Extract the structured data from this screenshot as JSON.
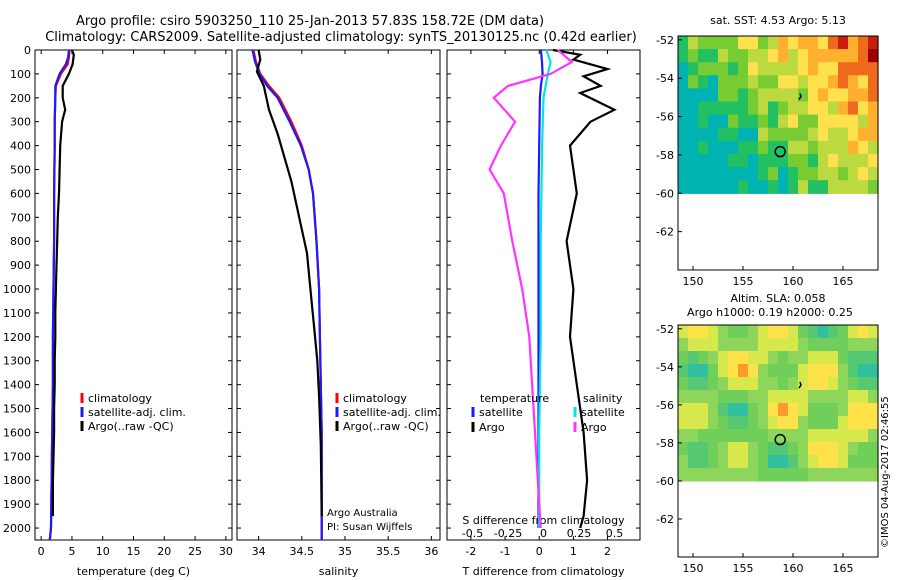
{
  "figure": {
    "title_line1": "Argo profile: csiro 5903250_110 25-Jan-2013 57.83S 158.72E (DM data)",
    "title_line2": "Climatology: CARS2009. Satellite-adjusted climatology: synTS_20130125.nc (0.42d earlier)",
    "credit": "©IMOS 04-Aug-2017 02:46:55",
    "note_line1": "Argo Australia",
    "note_line2": "PI: Susan Wijffels"
  },
  "colors": {
    "climatology": "#ff0000",
    "satellite": "#1a1aff",
    "argo": "#000000",
    "satellite_s": "#00e5e5",
    "argo_s": "#ff33ff"
  },
  "chart_data": [
    {
      "id": "temperature",
      "type": "line",
      "xlabel": "temperature (deg C)",
      "ylabel": "",
      "xlim": [
        -1,
        31
      ],
      "xticks": [
        0,
        5,
        10,
        15,
        20,
        25,
        30
      ],
      "ylim": [
        0,
        2050
      ],
      "yticks": [
        0,
        100,
        200,
        300,
        400,
        500,
        600,
        700,
        800,
        900,
        1000,
        1100,
        1200,
        1300,
        1400,
        1500,
        1600,
        1700,
        1800,
        1900,
        2000
      ],
      "legend": [
        "climatology",
        "satellite-adj. clim.",
        "Argo(..raw -QC)"
      ],
      "series": [
        {
          "name": "climatology",
          "x": [
            4.6,
            4.5,
            4.3,
            3.2,
            2.4,
            2.3,
            2.2,
            2.2,
            2.1,
            2.1,
            2.0,
            1.9,
            1.9,
            1.8,
            1.7,
            1.6,
            1.4
          ],
          "y": [
            0,
            30,
            60,
            100,
            150,
            200,
            300,
            400,
            600,
            800,
            1000,
            1200,
            1400,
            1600,
            1800,
            2000,
            2050
          ]
        },
        {
          "name": "satellite-adj. clim.",
          "x": [
            4.5,
            4.4,
            4.0,
            3.0,
            2.3,
            2.3,
            2.2,
            2.2,
            2.1,
            2.1,
            2.0,
            1.9,
            1.9,
            1.8,
            1.7,
            1.6,
            1.4
          ],
          "y": [
            0,
            30,
            60,
            100,
            150,
            200,
            300,
            400,
            600,
            800,
            1000,
            1200,
            1400,
            1600,
            1800,
            2000,
            2050
          ]
        },
        {
          "name": "Argo(..raw -QC)",
          "x": [
            5.0,
            5.3,
            5.1,
            4.5,
            3.5,
            3.5,
            3.9,
            3.6,
            3.4,
            3.1,
            3.0,
            2.9,
            2.7,
            2.6,
            2.5,
            2.4,
            2.3,
            2.3,
            2.2,
            2.2,
            2.1,
            2.1,
            2.0,
            1.9,
            1.9
          ],
          "y": [
            0,
            20,
            60,
            100,
            150,
            200,
            250,
            280,
            300,
            400,
            500,
            600,
            700,
            800,
            900,
            1000,
            1100,
            1200,
            1300,
            1400,
            1500,
            1600,
            1700,
            1800,
            1950
          ]
        }
      ]
    },
    {
      "id": "salinity",
      "type": "line",
      "xlabel": "salinity",
      "ylabel": "",
      "xlim": [
        33.75,
        36.1
      ],
      "xticks": [
        34,
        34.5,
        35,
        35.5,
        36
      ],
      "xtick_labels": [
        "34",
        "34.5",
        "35",
        "35.5",
        "36"
      ],
      "ylim": [
        0,
        2050
      ],
      "legend": [
        "climatology",
        "satellite-adj. clim.",
        "Argo(..raw -QC)"
      ],
      "series": [
        {
          "name": "climatology",
          "x": [
            33.94,
            33.97,
            34.02,
            34.12,
            34.24,
            34.38,
            34.5,
            34.58,
            34.63,
            34.67,
            34.7,
            34.71,
            34.72,
            34.73,
            34.73,
            34.73,
            34.73
          ],
          "y": [
            0,
            50,
            100,
            150,
            200,
            300,
            400,
            500,
            600,
            800,
            1000,
            1200,
            1400,
            1600,
            1800,
            2000,
            2050
          ]
        },
        {
          "name": "satellite-adj. clim.",
          "x": [
            33.93,
            33.96,
            34.01,
            34.1,
            34.22,
            34.36,
            34.49,
            34.58,
            34.63,
            34.67,
            34.7,
            34.71,
            34.72,
            34.73,
            34.73,
            34.73,
            34.73
          ],
          "y": [
            0,
            50,
            100,
            150,
            200,
            300,
            400,
            500,
            600,
            800,
            1000,
            1200,
            1400,
            1600,
            1800,
            2000,
            2050
          ]
        },
        {
          "name": "Argo(..raw -QC)",
          "x": [
            34.0,
            34.02,
            33.98,
            34.06,
            34.12,
            34.22,
            34.3,
            34.38,
            34.44,
            34.5,
            34.56,
            34.6,
            34.64,
            34.68,
            34.7,
            34.72,
            34.73
          ],
          "y": [
            0,
            40,
            90,
            150,
            250,
            350,
            450,
            550,
            650,
            750,
            850,
            1000,
            1150,
            1300,
            1450,
            1650,
            1950
          ]
        }
      ]
    },
    {
      "id": "difference",
      "type": "line",
      "xlabel": "T difference from climatology",
      "xlabel_top": "S difference from climatology",
      "xlim": [
        -2.7,
        2.95
      ],
      "xticks": [
        -2,
        -1,
        0,
        1,
        2
      ],
      "sticks": [
        -0.5,
        -0.25,
        0,
        0.25,
        0.5
      ],
      "stick_labels": [
        "-0.5",
        "-0.25",
        "0",
        "0.25",
        "0.5"
      ],
      "ylim": [
        0,
        2050
      ],
      "legend_titles": [
        "temperature",
        "salinity"
      ],
      "legend": [
        "satellite",
        "Argo",
        "satellite",
        "Argo"
      ],
      "series": [
        {
          "name": "satellite",
          "x": [
            0.05,
            0.08,
            0.1,
            0.05,
            0.02,
            0.0,
            -0.02,
            -0.02,
            -0.02,
            -0.02,
            -0.02
          ],
          "y": [
            0,
            50,
            100,
            150,
            200,
            400,
            600,
            1000,
            1400,
            1800,
            2000
          ]
        },
        {
          "name": "Argo",
          "x": [
            0.4,
            1.2,
            1.0,
            2.0,
            1.3,
            1.8,
            1.2,
            2.2,
            1.5,
            0.9,
            1.1,
            0.8,
            1.0,
            0.9,
            1.1,
            1.3,
            1.4,
            1.3,
            1.2
          ],
          "y": [
            0,
            20,
            40,
            80,
            110,
            150,
            180,
            250,
            300,
            400,
            600,
            800,
            1000,
            1200,
            1400,
            1600,
            1800,
            1950,
            2000
          ]
        },
        {
          "name": "satellite",
          "x": [
            0.02,
            0.05,
            0.03,
            0.0,
            -0.01,
            -0.02,
            -0.02,
            -0.03,
            -0.03,
            -0.03
          ],
          "y": [
            0,
            50,
            100,
            200,
            400,
            800,
            1200,
            1600,
            1900,
            2000
          ]
        },
        {
          "name": "Argo",
          "x": [
            0.1,
            0.2,
            0.05,
            -0.25,
            -0.35,
            -0.2,
            -0.3,
            -0.38,
            -0.28,
            -0.22,
            -0.15,
            -0.1,
            -0.08,
            -0.06,
            -0.04,
            -0.02
          ],
          "y": [
            0,
            50,
            100,
            150,
            200,
            300,
            400,
            500,
            600,
            800,
            1000,
            1200,
            1400,
            1600,
            1800,
            2000
          ]
        }
      ]
    }
  ],
  "maps": [
    {
      "title_line1": "sat. SST: 4.53 Argo: 5.13",
      "title_line2": "",
      "xticks": [
        150,
        155,
        160,
        165
      ],
      "yticks": [
        -52,
        -54,
        -56,
        -58,
        -60,
        -62
      ],
      "marker": [
        158.72,
        -57.83
      ]
    },
    {
      "title_line1": "Altim. SLA: 0.058",
      "title_line2": "Argo h1000: 0.19 h2000: 0.25",
      "xticks": [
        150,
        155,
        160,
        165
      ],
      "yticks": [
        -52,
        -54,
        -56,
        -58,
        -60,
        -62
      ],
      "marker": [
        158.72,
        -57.83
      ]
    }
  ]
}
